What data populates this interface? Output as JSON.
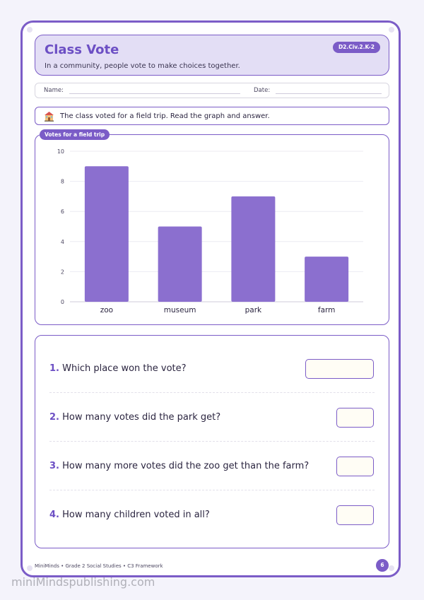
{
  "header": {
    "title": "Class Vote",
    "subtitle": "In a community, people vote to make choices together.",
    "code": "D2.Civ.2.K-2"
  },
  "name_row": {
    "name_label": "Name:",
    "date_label": "Date:"
  },
  "instruction": {
    "icon": "school-icon",
    "text": "The class voted for a field trip. Read the graph and answer."
  },
  "chart_data": {
    "type": "bar",
    "title": "Votes for a field trip",
    "categories": [
      "zoo",
      "museum",
      "park",
      "farm"
    ],
    "values": [
      9,
      5,
      7,
      3
    ],
    "ylim": [
      0,
      10
    ],
    "yticks": [
      0,
      2,
      4,
      6,
      8,
      10
    ],
    "xlabel": "",
    "ylabel": "",
    "grid": true,
    "bar_color": "#8b6fcf"
  },
  "questions": [
    {
      "num": "1.",
      "text": "Which place won the vote?"
    },
    {
      "num": "2.",
      "text": "How many votes did the park get?"
    },
    {
      "num": "3.",
      "text": "How many more votes did the zoo get than the farm?"
    },
    {
      "num": "4.",
      "text": "How many children voted in all?"
    }
  ],
  "footer": {
    "text": "MiniMinds • Grade 2 Social Studies • C3 Framework",
    "page": "6"
  },
  "watermark": "miniMindspublishing.com",
  "colors": {
    "accent": "#7b5cc7",
    "light_accent": "#e3def5"
  }
}
